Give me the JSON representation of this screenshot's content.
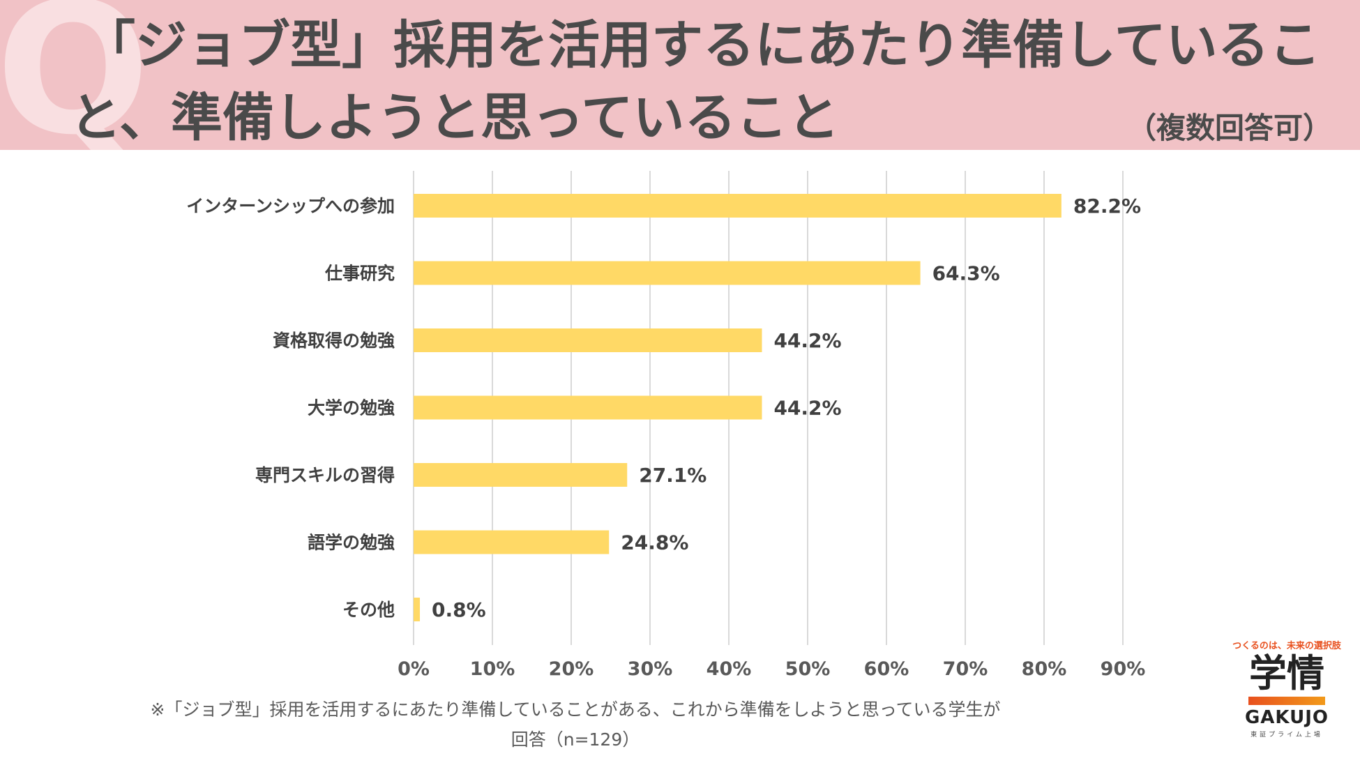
{
  "header": {
    "q_mark": "Q",
    "title_line1": "「ジョブ型」採用を活用するにあたり準備しているこ",
    "title_line2": "と、準備しようと思っていること",
    "subtitle": "（複数回答可）"
  },
  "chart_data": {
    "type": "bar",
    "orientation": "horizontal",
    "categories": [
      "インターンシップへの参加",
      "仕事研究",
      "資格取得の勉強",
      "大学の勉強",
      "専門スキルの習得",
      "語学の勉強",
      "その他"
    ],
    "values": [
      82.2,
      64.3,
      44.2,
      44.2,
      27.1,
      24.8,
      0.8
    ],
    "value_labels": [
      "82.2%",
      "64.3%",
      "44.2%",
      "44.2%",
      "27.1%",
      "24.8%",
      "0.8%"
    ],
    "xlim": [
      0,
      90
    ],
    "xticks": [
      0,
      10,
      20,
      30,
      40,
      50,
      60,
      70,
      80,
      90
    ],
    "xtick_labels": [
      "0%",
      "10%",
      "20%",
      "30%",
      "40%",
      "50%",
      "60%",
      "70%",
      "80%",
      "90%"
    ],
    "grid": true,
    "bar_color": "#ffd966",
    "title": "",
    "xlabel": "",
    "ylabel": ""
  },
  "footnote": {
    "line1": "※「ジョブ型」採用を活用するにあたり準備していることがある、これから準備をしようと思っている学生が",
    "line2": "回答（n=129）"
  },
  "logo": {
    "tagline": "つくるのは、未来の選択肢",
    "kanji": "学情",
    "english": "GAKUJO",
    "sub": "東証プライム上場"
  }
}
